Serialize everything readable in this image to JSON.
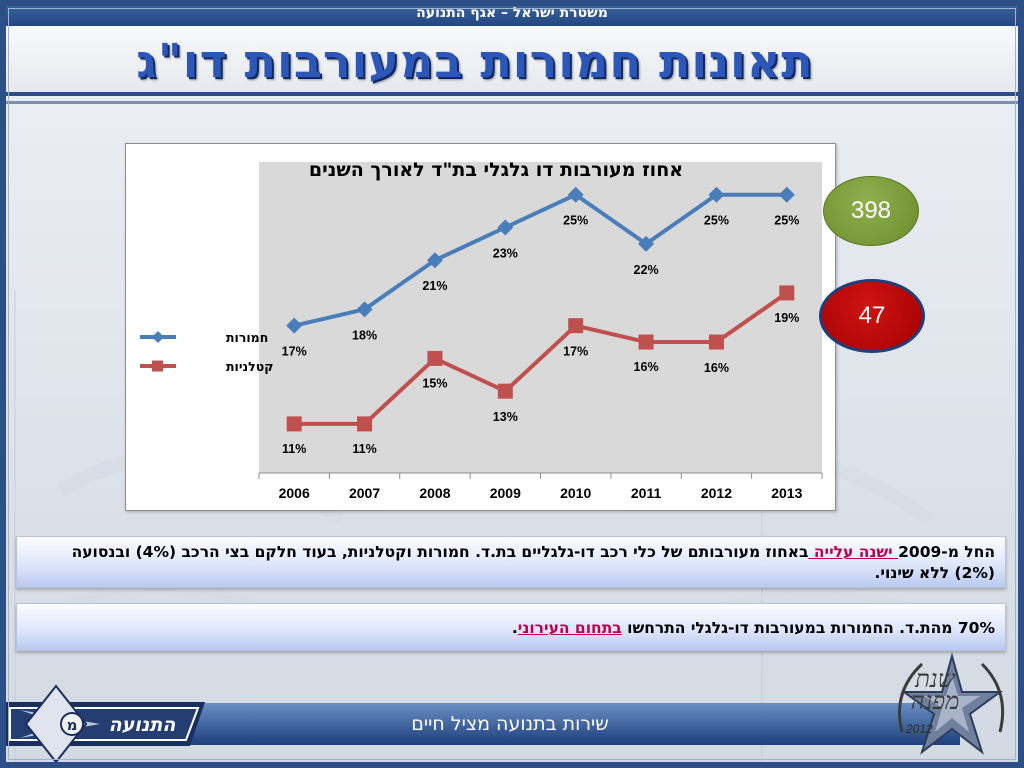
{
  "header": {
    "top_strip": "משטרת ישראל – אגף התנועה",
    "title": "תאונות חמורות במעורבות דו\"ג"
  },
  "bubbles": {
    "serious_count": "398",
    "fatal_count": "47"
  },
  "chart_data": {
    "type": "line",
    "title": "אחוז מעורבות דו גלגלי בת\"ד לאורך השנים",
    "categories": [
      "2006",
      "2007",
      "2008",
      "2009",
      "2010",
      "2011",
      "2012",
      "2013"
    ],
    "series": [
      {
        "name": "חמורות",
        "color": "#4a7ebb",
        "marker": "diamond",
        "values": [
          17,
          18,
          21,
          23,
          25,
          22,
          25,
          25
        ],
        "labels": [
          "17%",
          "18%",
          "21%",
          "23%",
          "25%",
          "22%",
          "25%",
          "25%"
        ]
      },
      {
        "name": "קטלניות",
        "color": "#c0504d",
        "marker": "square",
        "values": [
          11,
          11,
          15,
          13,
          17,
          16,
          16,
          19
        ],
        "labels": [
          "11%",
          "11%",
          "15%",
          "13%",
          "17%",
          "16%",
          "16%",
          "19%"
        ]
      }
    ],
    "ylim": [
      8,
      27
    ],
    "legend": "left",
    "plot_background": "#d9d9d9",
    "grid": false
  },
  "notes": {
    "note1_pre": "החל מ-2009",
    "note1_highlight": " ישנה עלייה ",
    "note1_post": "באחוז מעורבותם של כלי רכב דו-גלגליים בת.ד. חמורות וקטלניות, בעוד חלקם בצי הרכב (4%) ובנסועה (2%) ללא שינוי.",
    "note2_pre": "70% מהת.ד. החמורות במעורבות דו-גלגלי התרחשו ",
    "note2_highlight": "בתחום העירוני",
    "note2_post": "."
  },
  "footer": {
    "slogan": "שירות בתנועה מציל חיים",
    "logo_left_text": "התנועה",
    "logo_left_letter": "מ",
    "logo_right_text": "שנת מפנה",
    "logo_right_year": "2012"
  }
}
